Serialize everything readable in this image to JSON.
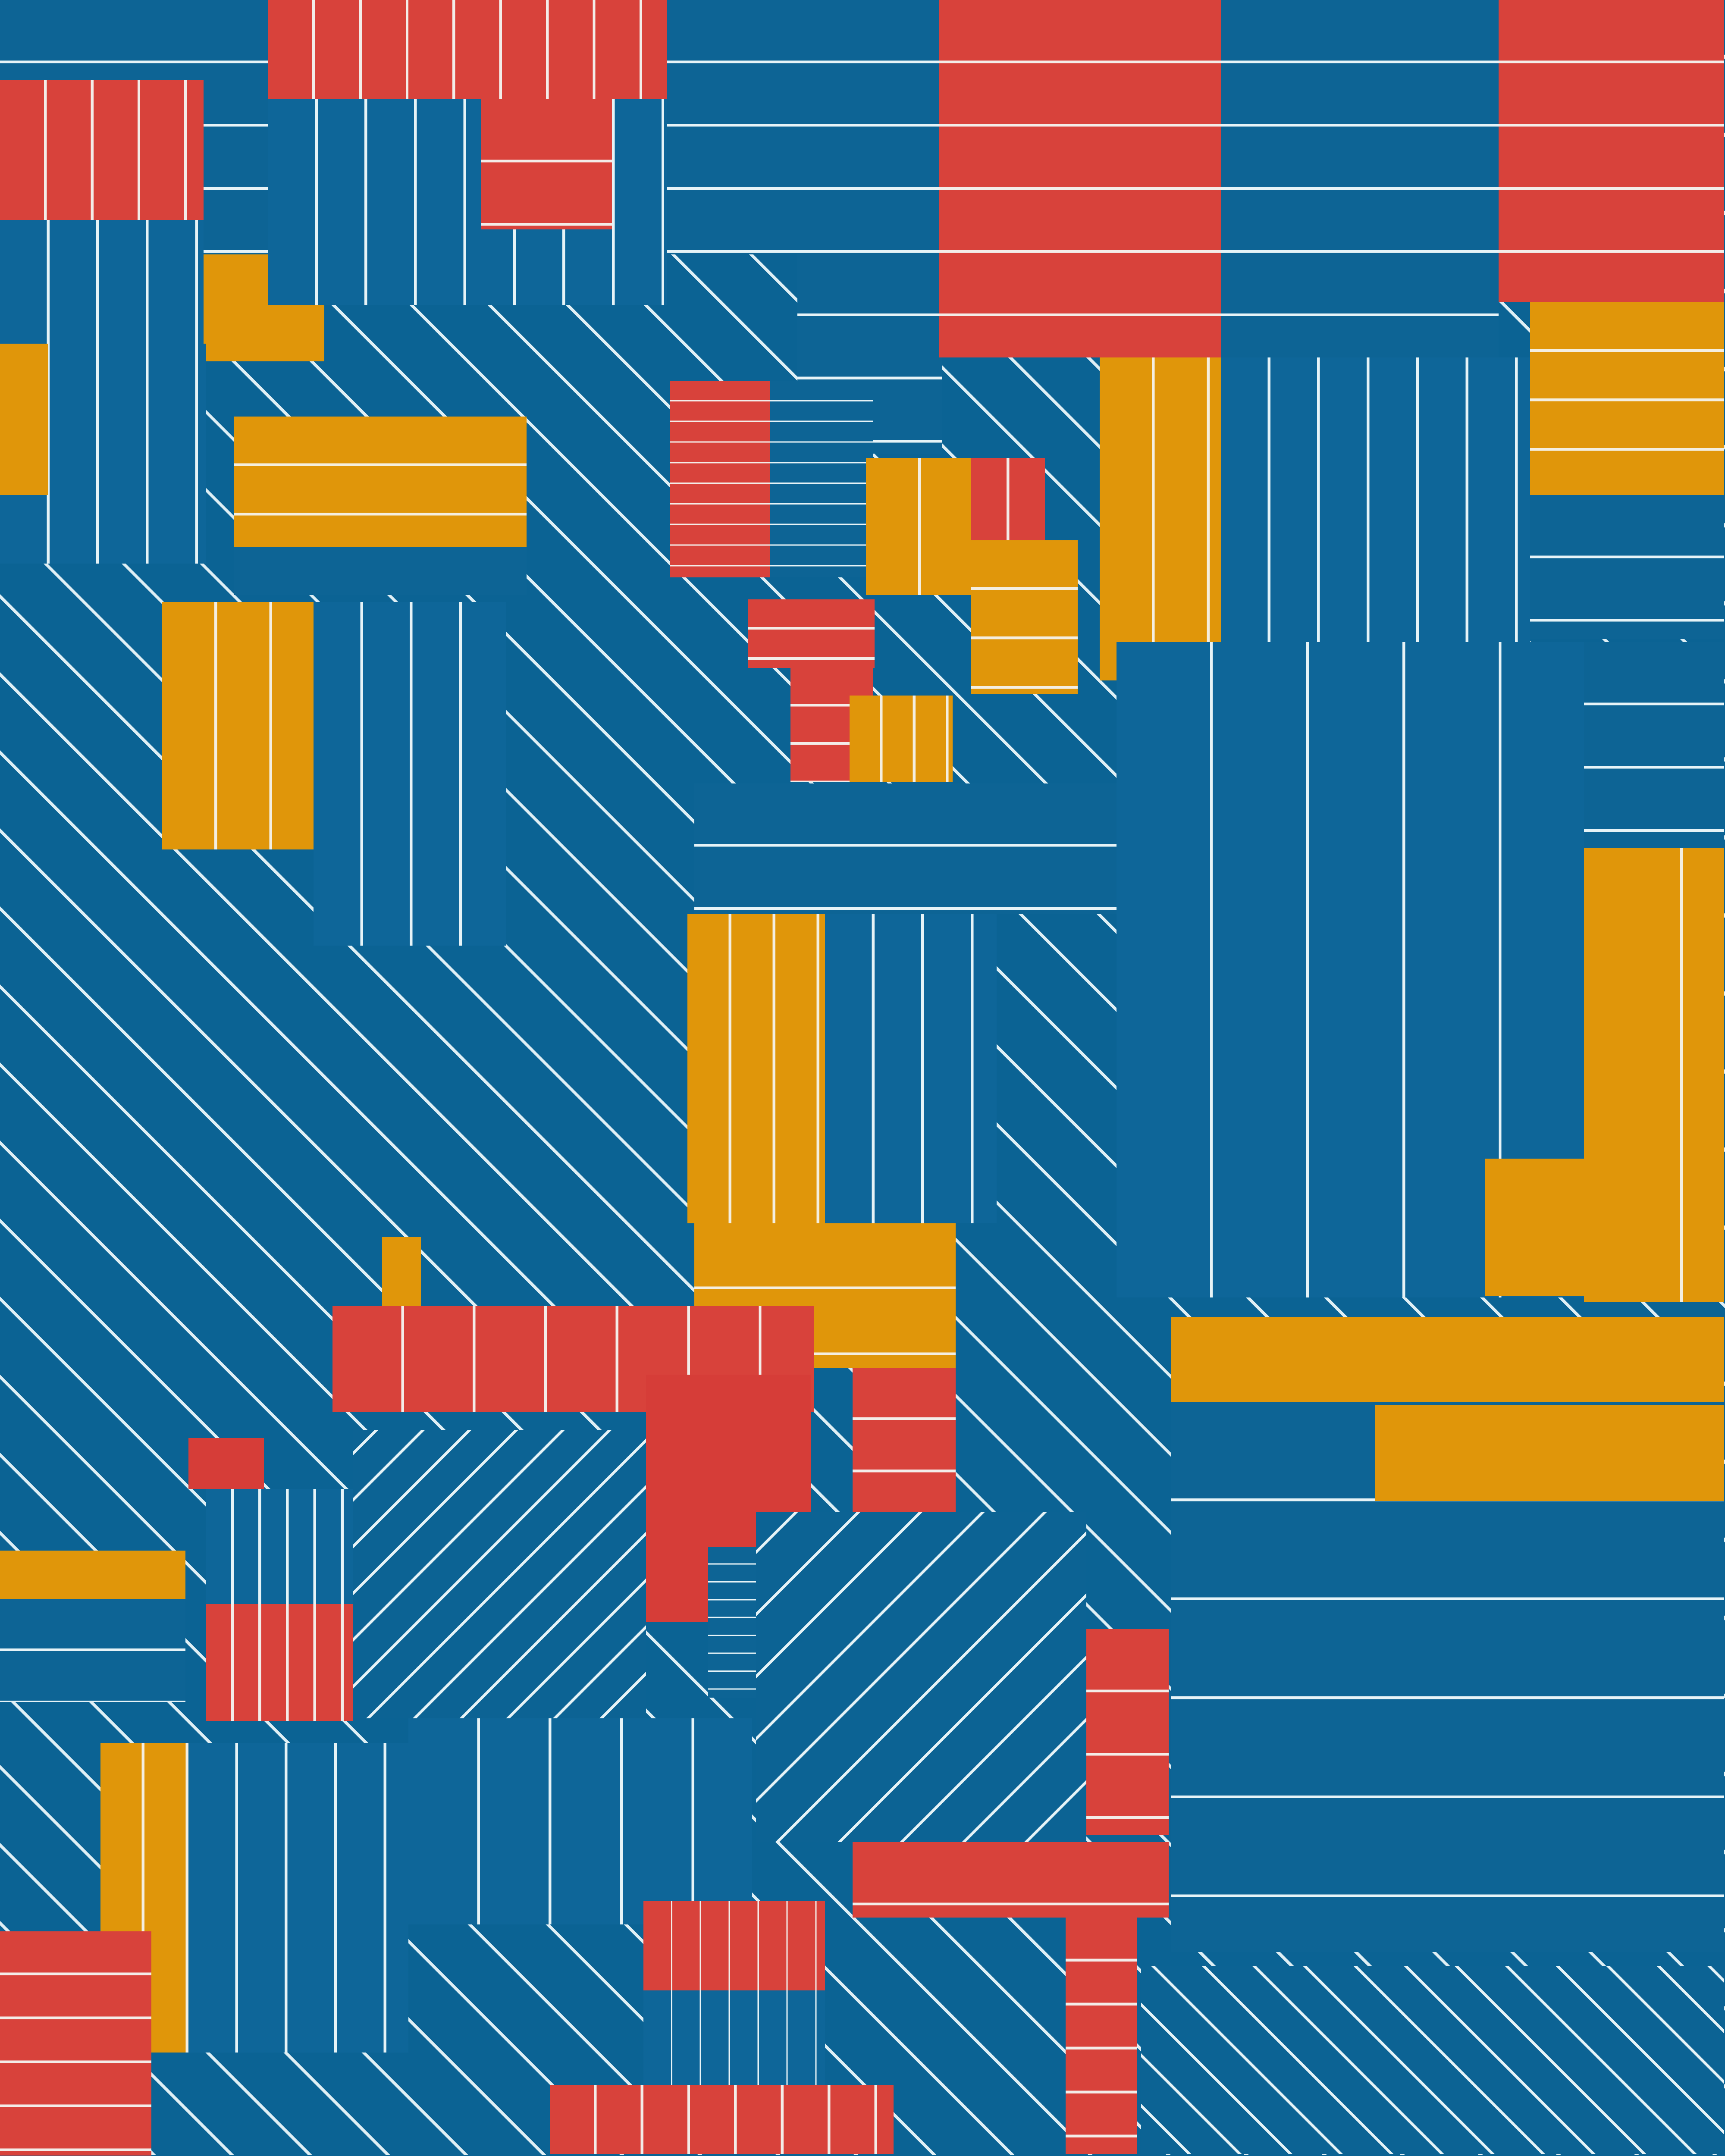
{
  "artwork": {
    "type": "collage of running-track photographs",
    "colors": {
      "track_blue": "#0b6394",
      "track_red": "#d63d38",
      "track_orange": "#e0960a",
      "lane_line": "#e6f3f7"
    }
  }
}
